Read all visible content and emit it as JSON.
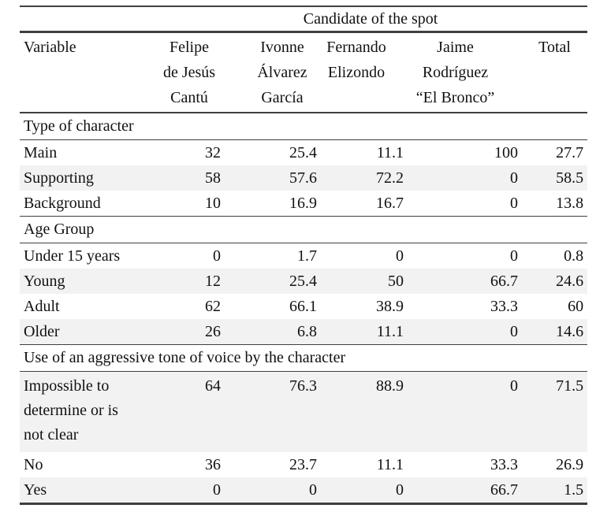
{
  "colors": {
    "row_shade": "#f2f2f2",
    "rule": "#3f3f3f",
    "text": "#111111",
    "background": "#ffffff"
  },
  "table": {
    "spanning_header": "Candidate of the spot",
    "columns": [
      {
        "lines": [
          "Variable"
        ]
      },
      {
        "lines": [
          "Felipe",
          "de Jesús",
          "Cantú"
        ]
      },
      {
        "lines": [
          "Ivonne",
          "Álvarez",
          "García"
        ]
      },
      {
        "lines": [
          "Fernando",
          "Elizondo"
        ]
      },
      {
        "lines": [
          "Jaime",
          "Rodríguez",
          "“El Bronco”"
        ]
      },
      {
        "lines": [
          "Total"
        ]
      }
    ],
    "sections": [
      {
        "title": "Type of character",
        "rows": [
          {
            "label": "Main",
            "values": [
              "32",
              "25.4",
              "11.1",
              "100",
              "27.7"
            ],
            "shaded": false
          },
          {
            "label": "Supporting",
            "values": [
              "58",
              "57.6",
              "72.2",
              "0",
              "58.5"
            ],
            "shaded": true
          },
          {
            "label": "Background",
            "values": [
              "10",
              "16.9",
              "16.7",
              "0",
              "13.8"
            ],
            "shaded": false
          }
        ]
      },
      {
        "title": "Age Group",
        "rows": [
          {
            "label": "Under 15 years",
            "values": [
              "0",
              "1.7",
              "0",
              "0",
              "0.8"
            ],
            "shaded": false
          },
          {
            "label": "Young",
            "values": [
              "12",
              "25.4",
              "50",
              "66.7",
              "24.6"
            ],
            "shaded": true
          },
          {
            "label": "Adult",
            "values": [
              "62",
              "66.1",
              "38.9",
              "33.3",
              "60"
            ],
            "shaded": false
          },
          {
            "label": "Older",
            "values": [
              "26",
              "6.8",
              "11.1",
              "0",
              "14.6"
            ],
            "shaded": true
          }
        ]
      },
      {
        "title": "Use of an aggressive tone of voice by the character",
        "rows": [
          {
            "label": [
              "Impossible to",
              "determine or is",
              "not clear"
            ],
            "values": [
              "64",
              "76.3",
              "88.9",
              "0",
              "71.5"
            ],
            "shaded": true,
            "multiline": true
          },
          {
            "label": "No",
            "values": [
              "36",
              "23.7",
              "11.1",
              "33.3",
              "26.9"
            ],
            "shaded": false
          },
          {
            "label": "Yes",
            "values": [
              "0",
              "0",
              "0",
              "66.7",
              "1.5"
            ],
            "shaded": true
          }
        ]
      }
    ]
  }
}
